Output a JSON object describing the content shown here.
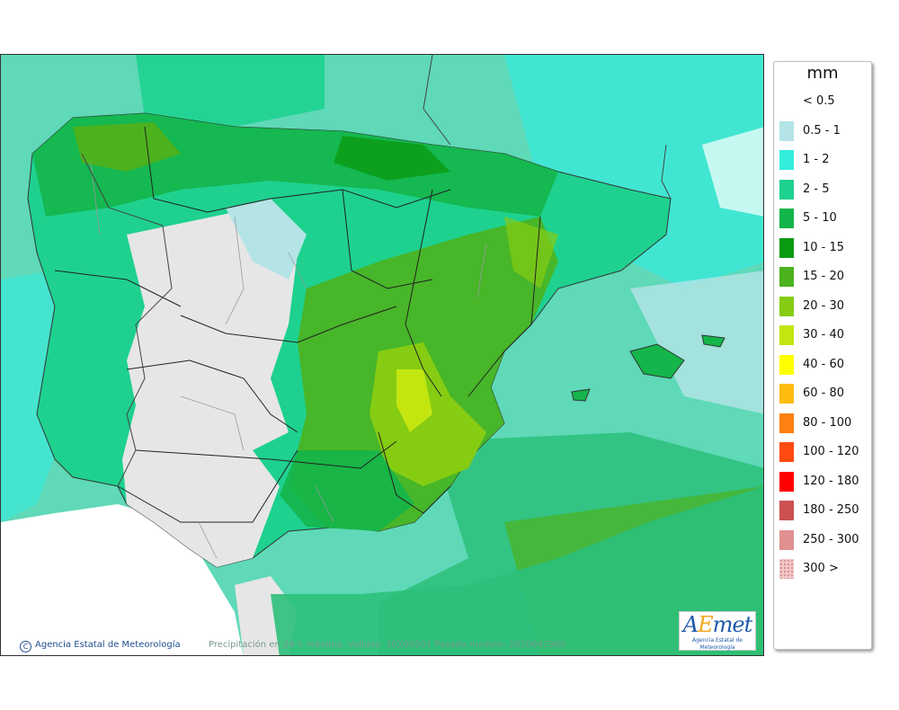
{
  "legend": {
    "unit": "mm",
    "items": [
      {
        "label": "< 0.5",
        "color": "#ffffff"
      },
      {
        "label": "0.5 - 1",
        "color": "#b4e4e6"
      },
      {
        "label": "1 - 2",
        "color": "#33eedd"
      },
      {
        "label": "2 - 5",
        "color": "#1ed18f"
      },
      {
        "label": "5 - 10",
        "color": "#14b54a"
      },
      {
        "label": "10 - 15",
        "color": "#0a9a12"
      },
      {
        "label": "15 - 20",
        "color": "#4bb21e"
      },
      {
        "label": "20 - 30",
        "color": "#86cc12"
      },
      {
        "label": "30 - 40",
        "color": "#c3e610"
      },
      {
        "label": "40 - 60",
        "color": "#ffff00"
      },
      {
        "label": "60 - 80",
        "color": "#ffbb10"
      },
      {
        "label": "80 - 100",
        "color": "#ff8010"
      },
      {
        "label": "100 - 120",
        "color": "#ff4a10"
      },
      {
        "label": "120 - 180",
        "color": "#ff0000"
      },
      {
        "label": "180 - 250",
        "color": "#cc5050"
      },
      {
        "label": "250 - 300",
        "color": "#e09090"
      },
      {
        "label": "300 >",
        "color": "#f2c8c8"
      }
    ]
  },
  "map": {
    "credit": "Agencia Estatal de Meteorología",
    "caption": "Precipitación en 24 h máxima. Validez: 20200501 Pasada modelo: 2020042900",
    "logo_text": "AEmet",
    "logo_sub": "Agencia Estatal de Meteorología",
    "sea_color": "#5fd9b8",
    "land_dry_color": "#e6e6e6",
    "africa_color": "#ffffff"
  }
}
